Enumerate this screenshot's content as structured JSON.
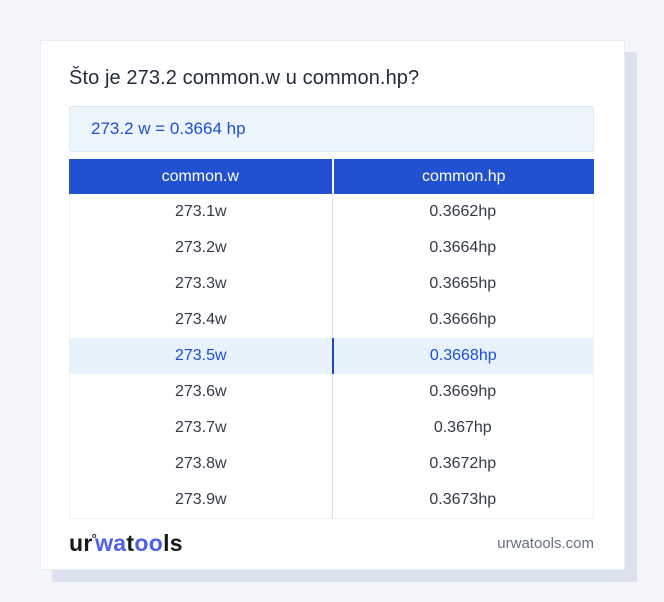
{
  "card": {
    "title": "Što je 273.2 common.w u common.hp?",
    "answer": "273.2 w = 0.3664 hp"
  },
  "table": {
    "columns": [
      {
        "label": "common.w"
      },
      {
        "label": "common.hp"
      }
    ],
    "rows": [
      {
        "w": "273.1w",
        "hp": "0.3662hp"
      },
      {
        "w": "273.2w",
        "hp": "0.3664hp"
      },
      {
        "w": "273.3w",
        "hp": "0.3665hp"
      },
      {
        "w": "273.4w",
        "hp": "0.3666hp"
      },
      {
        "w": "273.5w",
        "hp": "0.3668hp",
        "highlight": true
      },
      {
        "w": "273.6w",
        "hp": "0.3669hp"
      },
      {
        "w": "273.7w",
        "hp": "0.367hp"
      },
      {
        "w": "273.8w",
        "hp": "0.3672hp"
      },
      {
        "w": "273.9w",
        "hp": "0.3673hp"
      }
    ]
  },
  "footer": {
    "logo": {
      "part_dark_1": "ur",
      "degree_mark": "°",
      "part_blue_1": "wa",
      "part_dark_2": "t",
      "part_blue_2": "oo",
      "part_dark_3": "ls"
    },
    "domain": "urwatools.com"
  },
  "colors": {
    "page_bg": "#f4f6fa",
    "shadow_color": "#dbe1ee",
    "header_bg": "#2150d0",
    "accent_blue": "#1d4fd7",
    "answer_bg": "#ecf4fc",
    "highlight_bg": "#e8f2fc",
    "logo_dark": "#17181a",
    "logo_blue": "#4d5ff1"
  }
}
